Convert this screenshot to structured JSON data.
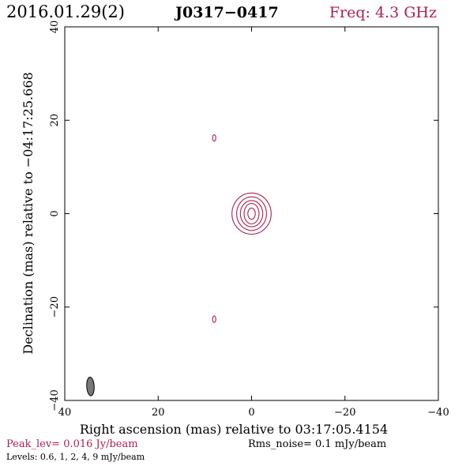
{
  "header": {
    "date": "2016.01.29(2)",
    "source": "J0317−0417",
    "freq": "Freq: 4.3 GHz"
  },
  "footer": {
    "peak": "Peak_lev=  0.016 Jy/beam",
    "rms": "Rms_noise=  0.1 mJy/beam",
    "levels": "Levels: 0.6,   1,   2,   4,   9 mJy/beam"
  },
  "colors": {
    "contour": "#b0204a",
    "beam_fill": "#777777",
    "text": "#000000"
  },
  "chart_data": {
    "type": "contour",
    "xlabel": "Right ascension (mas) relative to 03:17:05.4154",
    "ylabel": "Declination (mas) relative to −04:17:25.668",
    "xlim": [
      40,
      -40
    ],
    "ylim": [
      -40,
      40
    ],
    "xticks": [
      40,
      20,
      0,
      -20,
      -40
    ],
    "yticks": [
      -40,
      -20,
      0,
      20,
      40
    ],
    "xtick_labels": [
      "40",
      "20",
      "0",
      "−20",
      "−40"
    ],
    "ytick_labels": [
      "−40",
      "−20",
      "0",
      "20",
      "40"
    ],
    "levels_mJy": [
      0.6,
      1,
      2,
      4,
      9
    ],
    "components": [
      {
        "x": 0,
        "y": 0,
        "contours": [
          [
            4.2,
            4.4
          ],
          [
            3.2,
            3.6
          ],
          [
            2.4,
            2.8
          ],
          [
            1.6,
            2.2
          ],
          [
            0.8,
            1.2
          ]
        ]
      },
      {
        "x": 8,
        "y": 16.2,
        "contours": [
          [
            0.35,
            0.7
          ]
        ]
      },
      {
        "x": 8,
        "y": -22.6,
        "contours": [
          [
            0.35,
            0.7
          ]
        ]
      }
    ],
    "beam": {
      "x": 34.5,
      "y": -37,
      "major_mas": 4.0,
      "minor_mas": 1.6,
      "pa_deg": -3
    }
  }
}
